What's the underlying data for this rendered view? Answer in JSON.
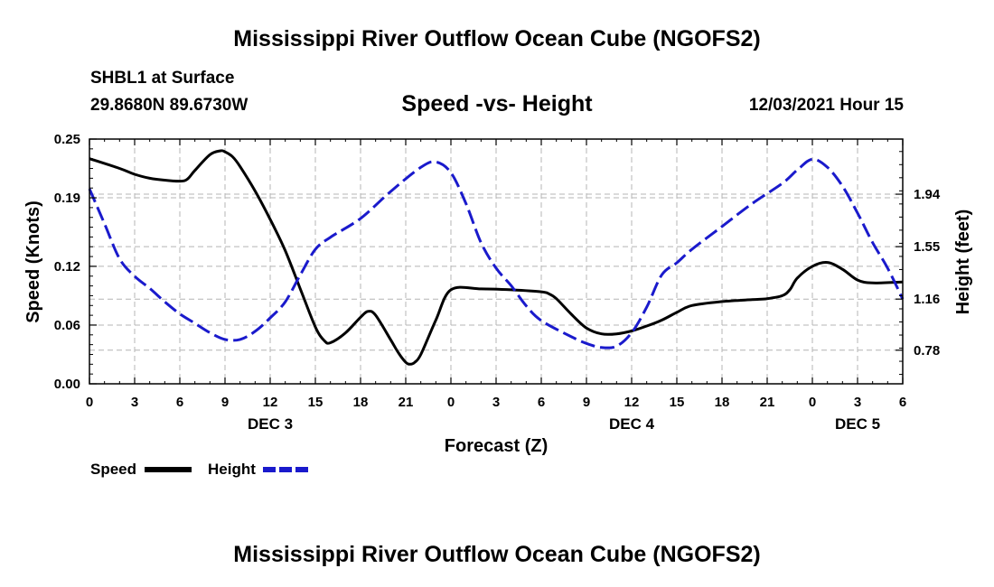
{
  "header": {
    "title": "Mississippi River Outflow Ocean Cube (NGOFS2)",
    "station": "SHBL1 at Surface",
    "coords": "29.8680N  89.6730W",
    "subtitle": "Speed -vs- Height",
    "datetime": "12/03/2021 Hour 15"
  },
  "footer": {
    "title": "Mississippi River Outflow Ocean Cube (NGOFS2)"
  },
  "colors": {
    "speed": "#000000",
    "height": "#1a1acc",
    "grid": "#b4b4b4"
  },
  "chart_data": {
    "type": "line",
    "title": "Speed -vs- Height",
    "xlabel": "Forecast (Z)",
    "ylabel_left": "Speed (Knots)",
    "ylabel_right": "Height (feet)",
    "x_range_hours": [
      0,
      54
    ],
    "x_tick_step_hours": 3,
    "x_tick_labels": [
      "0",
      "3",
      "6",
      "9",
      "12",
      "15",
      "18",
      "21",
      "0",
      "3",
      "6",
      "9",
      "12",
      "15",
      "18",
      "21",
      "0",
      "3",
      "6"
    ],
    "day_labels": [
      {
        "label": "DEC 3",
        "hour": 12
      },
      {
        "label": "DEC 4",
        "hour": 36
      },
      {
        "label": "DEC 5",
        "hour": 51
      }
    ],
    "y_left": {
      "range": [
        0,
        0.25
      ],
      "ticks": [
        0.0,
        0.06,
        0.12,
        0.19,
        0.25
      ],
      "tick_labels": [
        "0.00",
        "0.06",
        "0.12",
        "0.19",
        "0.25"
      ]
    },
    "y_right": {
      "range": [
        0.53,
        2.35
      ],
      "ticks": [
        0.78,
        1.16,
        1.55,
        1.94
      ],
      "tick_labels": [
        "0.78",
        "1.16",
        "1.55",
        "1.94"
      ]
    },
    "legend": [
      "Speed",
      "Height"
    ],
    "series": [
      {
        "name": "Speed",
        "axis": "left",
        "style": "solid",
        "x": [
          0,
          2,
          3,
          4,
          5,
          6,
          6.5,
          7,
          8,
          8.7,
          9,
          9.5,
          10,
          11,
          12,
          13,
          14,
          15,
          15.6,
          16,
          17,
          18,
          18.5,
          19,
          20,
          20.5,
          21,
          21.3,
          21.6,
          22,
          23,
          24,
          26,
          28,
          30,
          30.5,
          31,
          32,
          33,
          34,
          35,
          36,
          37,
          38,
          39,
          40,
          42,
          44,
          45,
          46,
          46.5,
          47,
          48,
          49,
          50,
          51,
          52,
          54
        ],
        "y": [
          0.23,
          0.22,
          0.214,
          0.21,
          0.208,
          0.207,
          0.209,
          0.218,
          0.234,
          0.238,
          0.237,
          0.232,
          0.222,
          0.197,
          0.168,
          0.136,
          0.097,
          0.058,
          0.044,
          0.042,
          0.052,
          0.068,
          0.074,
          0.07,
          0.045,
          0.032,
          0.022,
          0.02,
          0.022,
          0.03,
          0.065,
          0.096,
          0.097,
          0.096,
          0.094,
          0.092,
          0.087,
          0.071,
          0.057,
          0.051,
          0.051,
          0.054,
          0.059,
          0.065,
          0.073,
          0.08,
          0.084,
          0.086,
          0.087,
          0.09,
          0.096,
          0.108,
          0.12,
          0.124,
          0.117,
          0.106,
          0.103,
          0.104
        ]
      },
      {
        "name": "Height",
        "axis": "right",
        "style": "dashed",
        "x": [
          0,
          1,
          2,
          3,
          4,
          5,
          6,
          7,
          8,
          9,
          10,
          11,
          12,
          13,
          14,
          15,
          16,
          18,
          20,
          22,
          23,
          24,
          25,
          26,
          27,
          28,
          29,
          30,
          32,
          33,
          34,
          35,
          36,
          37,
          38,
          39,
          40,
          42,
          44,
          46,
          47,
          48,
          49,
          50,
          51,
          52,
          53,
          54
        ],
        "y": [
          1.98,
          1.72,
          1.46,
          1.33,
          1.24,
          1.14,
          1.05,
          0.98,
          0.91,
          0.86,
          0.86,
          0.92,
          1.02,
          1.14,
          1.34,
          1.53,
          1.62,
          1.76,
          1.96,
          2.14,
          2.18,
          2.1,
          1.87,
          1.58,
          1.39,
          1.26,
          1.11,
          1.0,
          0.88,
          0.83,
          0.8,
          0.81,
          0.91,
          1.1,
          1.34,
          1.43,
          1.53,
          1.7,
          1.87,
          2.02,
          2.12,
          2.2,
          2.14,
          2.0,
          1.8,
          1.58,
          1.39,
          1.16
        ]
      }
    ]
  },
  "legend_labels": {
    "speed": "Speed",
    "height": "Height"
  }
}
